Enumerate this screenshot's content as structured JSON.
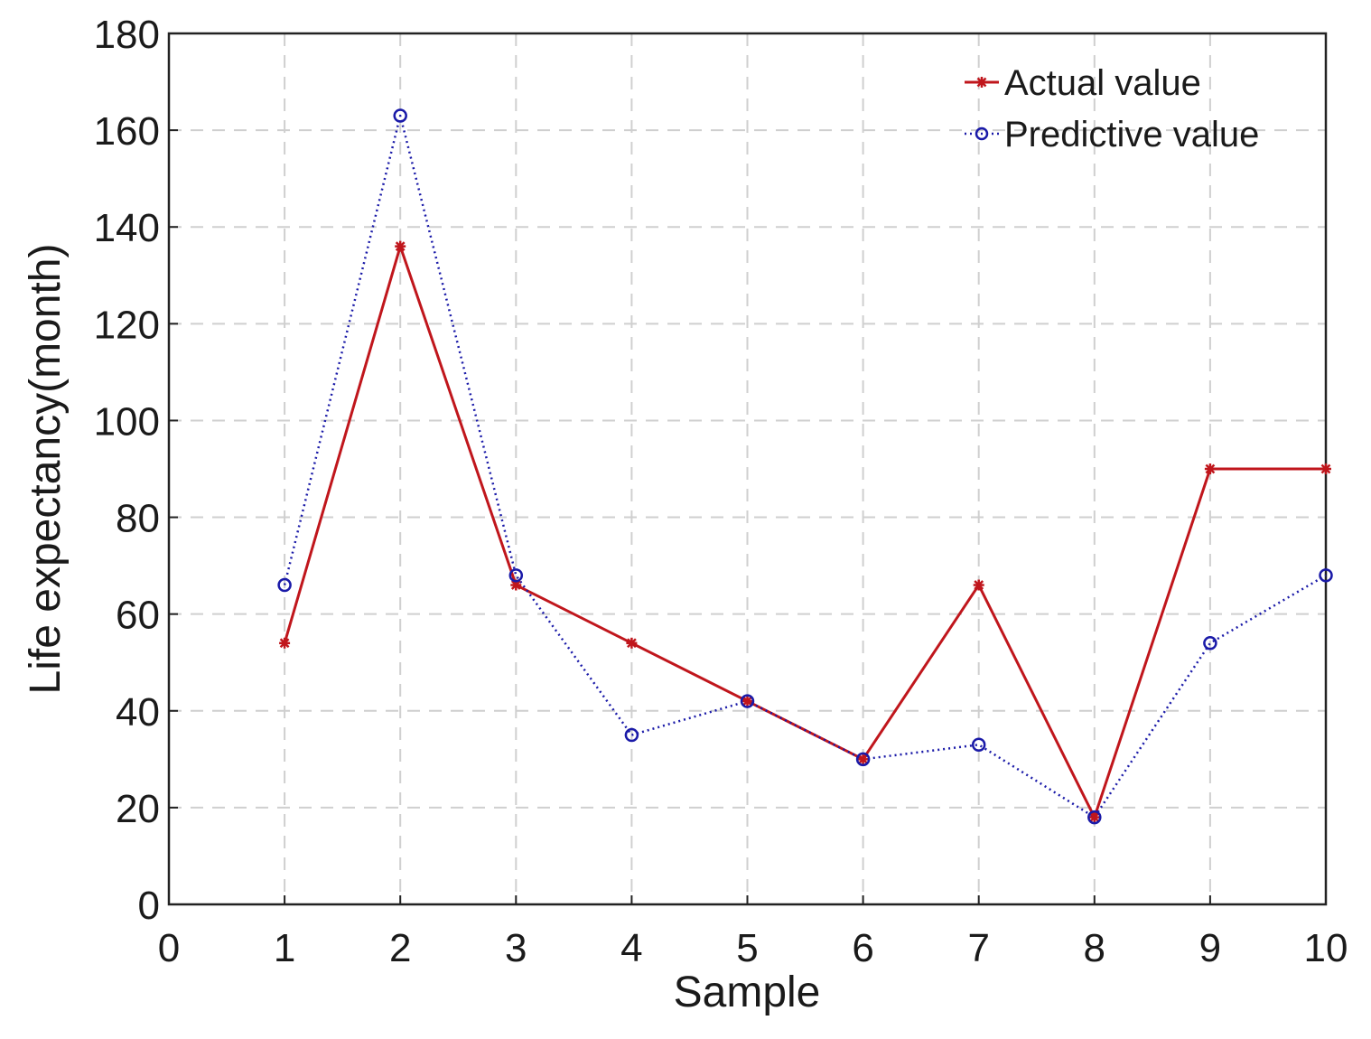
{
  "chart_data": {
    "type": "line",
    "title": "",
    "xlabel": "Sample",
    "ylabel": "Life expectancy(month)",
    "xlim": [
      0,
      10
    ],
    "ylim": [
      0,
      180
    ],
    "xticks": [
      0,
      1,
      2,
      3,
      4,
      5,
      6,
      7,
      8,
      9,
      10
    ],
    "yticks": [
      0,
      20,
      40,
      60,
      80,
      100,
      120,
      140,
      160,
      180
    ],
    "grid": true,
    "legend_position": "top-right",
    "x": [
      1,
      2,
      3,
      4,
      5,
      6,
      7,
      8,
      9,
      10
    ],
    "series": [
      {
        "name": "Actual value",
        "color": "#c0161c",
        "line_style": "solid",
        "marker": "asterisk",
        "values": [
          54,
          136,
          66,
          54,
          42,
          30,
          66,
          18,
          90,
          90
        ]
      },
      {
        "name": "Predictive value",
        "color": "#1a1aa8",
        "line_style": "dotted",
        "marker": "circle",
        "values": [
          66,
          163,
          68,
          35,
          42,
          30,
          33,
          18,
          54,
          68
        ]
      }
    ]
  }
}
